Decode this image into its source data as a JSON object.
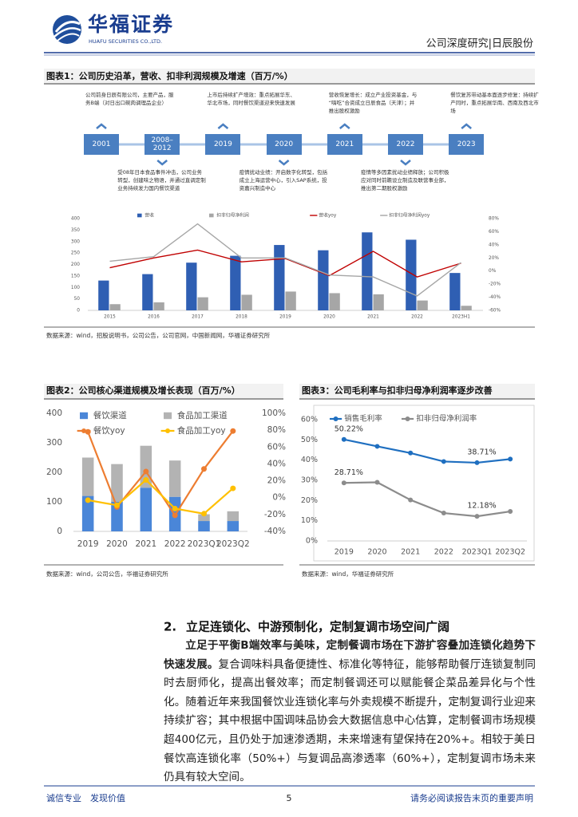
{
  "header": {
    "logo_cn": "华福证券",
    "logo_en": "HUAFU SECURITIES CO.,LTD.",
    "report": "公司深度研究|日辰股份"
  },
  "timeline": {
    "title": "图表1：公司历史沿革，营收、扣非利润规模及增速（百万/%）",
    "items": [
      {
        "year": "2001",
        "note": "公司前身日辰有限公司，主要产品，服务B端（对日出口碗肉调理品企业）"
      },
      {
        "year": "2008–2012",
        "note": "受08年日本食品事件冲击，公司业务转型，创建味之物语，并通过直调定制业务持续发力国内餐饮渠道"
      },
      {
        "year": "2019",
        "note": "上市后持续扩产增效：重点拓展华东、华北市场，同时餐饮渠道迎来快速发展"
      },
      {
        "year": "2020",
        "note": "疫情扰动业绩：开启数字化转型，包括成立上海运营中心，引入SAP系统，投资嘉兴制造中心"
      },
      {
        "year": "2021",
        "note": "营收恢复增长：成立产业投资基金，与“嗨吃”合资成立日辰食品（天津）；并推出股权激励"
      },
      {
        "year": "2022",
        "note": "疫情等多因素扰动业绩释放；公司积极应对同时前瞻设立制造及联营事业部，推出第二期股权激励"
      },
      {
        "year": "2023",
        "note": "餐饮复苏带动基本面逐步修复：持续扩产同时，重点拓展华南、西南及西北市场"
      }
    ]
  },
  "chart_data": [
    {
      "type": "bar",
      "source": "数据来源：wind，招股说明书，公司公告，公司官网，中国新闻网，华福证券研究所",
      "categories": [
        "2015",
        "2016",
        "2017",
        "2018",
        "2019",
        "2020",
        "2021",
        "2022",
        "2023H1"
      ],
      "series": [
        {
          "name": "营收",
          "type": "bar",
          "color": "#2f5fb3",
          "values": [
            130,
            158,
            208,
            238,
            285,
            262,
            340,
            308,
            163
          ]
        },
        {
          "name": "扣非归母净利润",
          "type": "bar",
          "color": "#a6a6a6",
          "values": [
            27,
            35,
            57,
            68,
            82,
            75,
            70,
            43,
            20
          ]
        },
        {
          "name": "营收yoy",
          "type": "line",
          "axis": "y2",
          "color": "#c00000",
          "values": [
            5,
            20,
            32,
            14,
            19,
            -7,
            30,
            -9,
            12
          ]
        },
        {
          "name": "扣非归母净利润yoy",
          "type": "line",
          "axis": "y2",
          "color": "#a6a6a6",
          "values": [
            15,
            22,
            72,
            20,
            20,
            -6,
            -9,
            -38,
            13
          ]
        }
      ],
      "ylim": [
        0,
        400
      ],
      "yticks": [
        0,
        50,
        100,
        150,
        200,
        250,
        300,
        350,
        400
      ],
      "y2lim": [
        -60,
        80
      ],
      "y2ticks": [
        {
          "value": -60,
          "label": "-60%"
        },
        {
          "value": -40,
          "label": "-40%"
        },
        {
          "value": -20,
          "label": "-20%"
        },
        {
          "value": 0,
          "label": "0%"
        },
        {
          "value": 20,
          "label": "20%"
        },
        {
          "value": 40,
          "label": "40%"
        },
        {
          "value": 60,
          "label": "60%"
        },
        {
          "value": 80,
          "label": "80%"
        }
      ],
      "grid": false,
      "legend": "top"
    },
    {
      "type": "bar",
      "stacked": true,
      "title": "图表2：公司核心渠道规模及增长表现（百万/%）",
      "source": "数据来源：wind，公司公告，华福证券研究所",
      "categories": [
        "2019",
        "2020",
        "2021",
        "2022",
        "2023Q1",
        "2023Q2"
      ],
      "series": [
        {
          "name": "餐饮渠道",
          "type": "bar",
          "color": "#4a86d8",
          "values": [
            120,
            100,
            148,
            117,
            35,
            35
          ]
        },
        {
          "name": "食品加工渠道",
          "type": "bar",
          "color": "#b3b3b3",
          "values": [
            130,
            128,
            142,
            123,
            23,
            33
          ]
        },
        {
          "name": "餐饮yoy",
          "type": "line",
          "axis": "y2",
          "color": "#ed7d31",
          "markers": true,
          "values": [
            78,
            -11,
            31,
            -21,
            34,
            79
          ]
        },
        {
          "name": "食品加工yoy",
          "type": "line",
          "axis": "y2",
          "color": "#ffc000",
          "markers": true,
          "values": [
            -3,
            -9,
            21,
            -13,
            -19,
            11
          ]
        }
      ],
      "ylim": [
        0,
        400
      ],
      "yticks": [
        0,
        100,
        200,
        300,
        400
      ],
      "y2lim": [
        -40,
        100
      ],
      "y2ticks": [
        {
          "value": -40,
          "label": "-40%"
        },
        {
          "value": -20,
          "label": "-20%"
        },
        {
          "value": 0,
          "label": "0%"
        },
        {
          "value": 20,
          "label": "20%"
        },
        {
          "value": 40,
          "label": "40%"
        },
        {
          "value": 60,
          "label": "60%"
        },
        {
          "value": 80,
          "label": "80%"
        },
        {
          "value": 100,
          "label": "100%"
        }
      ],
      "grid": false,
      "legend": "top-left"
    },
    {
      "type": "line",
      "title": "图表3：公司毛利率与扣非归母净利润率逐步改善",
      "source": "数据来源：wind，华福证券研究所",
      "categories": [
        "2019",
        "2020",
        "2021",
        "2022",
        "2023Q1",
        "2023Q2"
      ],
      "series": [
        {
          "name": "销售毛利率",
          "type": "line",
          "color": "#1f6fc0",
          "markers": true,
          "values": [
            50.22,
            46.8,
            43.5,
            39.3,
            38.71,
            40.5
          ],
          "value_labels": [
            "50.22%",
            null,
            null,
            null,
            "38.71%",
            null
          ]
        },
        {
          "name": "扣非归母净利润率",
          "type": "line",
          "color": "#8c8c8c",
          "markers": true,
          "values": [
            28.71,
            29.0,
            20.3,
            13.8,
            12.18,
            14.6
          ],
          "value_labels": [
            "28.71%",
            null,
            null,
            null,
            "12.18%",
            null
          ]
        }
      ],
      "ylim": [
        0,
        60
      ],
      "yticks": [
        {
          "value": 0,
          "label": "0%"
        },
        {
          "value": 10,
          "label": "10%"
        },
        {
          "value": 20,
          "label": "20%"
        },
        {
          "value": 30,
          "label": "30%"
        },
        {
          "value": 40,
          "label": "40%"
        },
        {
          "value": 50,
          "label": "50%"
        },
        {
          "value": 60,
          "label": "60%"
        }
      ],
      "grid": false,
      "legend": "top"
    }
  ],
  "section": {
    "number": "2.",
    "title": "立足连锁化、中游预制化，定制复调市场空间广阔"
  },
  "paragraph": {
    "bold": "立足于平衡B端效率与美味，定制餐调市场在下游扩容叠加连锁化趋势下快速发展。",
    "text": "复合调味料具备便捷性、标准化等特征，能够帮助餐厅连锁复制同时去厨师化，提高出餐效率；而定制餐调还可以赋能餐企菜品差异化与个性化。随着近年来我国餐饮业连锁化率与外卖规模不断提升，定制复调行业迎来持续扩容；其中根据中国调味品协会大数据信息中心估算，定制餐调市场规模超400亿元，且仍处于加速渗透期，未来增速有望保持在20%+。相较于美日餐饮高连锁化率（50%+）与复调品高渗透率（60%+），定制复调市场未来仍具有较大空间。"
  },
  "footer": {
    "left": "诚信专业　发现价值",
    "page": "5",
    "right": "请务必阅读报告末页的重要声明"
  }
}
